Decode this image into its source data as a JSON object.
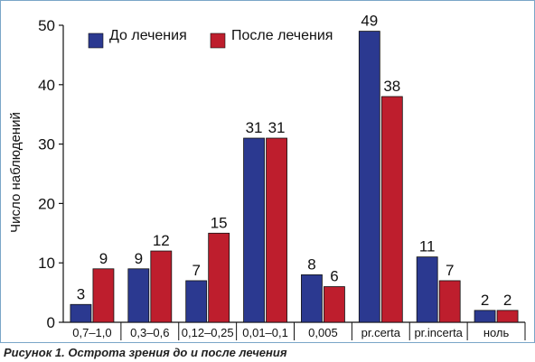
{
  "caption": "Рисунок 1. Острота зрения до и после лечения",
  "chart_data": {
    "type": "bar",
    "title": "",
    "xlabel": "",
    "ylabel": "Число наблюдений",
    "categories": [
      "0,7–1,0",
      "0,3–0,6",
      "0,12–0,25",
      "0,01–0,1",
      "0,005",
      "pr.certa",
      "pr.incerta",
      "ноль"
    ],
    "series": [
      {
        "name": "До лечения",
        "values": [
          3,
          9,
          7,
          31,
          8,
          49,
          11,
          2
        ],
        "color": "#2b3990"
      },
      {
        "name": "После лечения",
        "values": [
          9,
          12,
          15,
          31,
          6,
          38,
          7,
          2
        ],
        "color": "#be1e2d"
      }
    ],
    "ylim": [
      0,
      50
    ],
    "yticks": [
      0,
      10,
      20,
      30,
      40,
      50
    ],
    "grid": false,
    "legend_position": "top-left",
    "data_labels": true
  }
}
